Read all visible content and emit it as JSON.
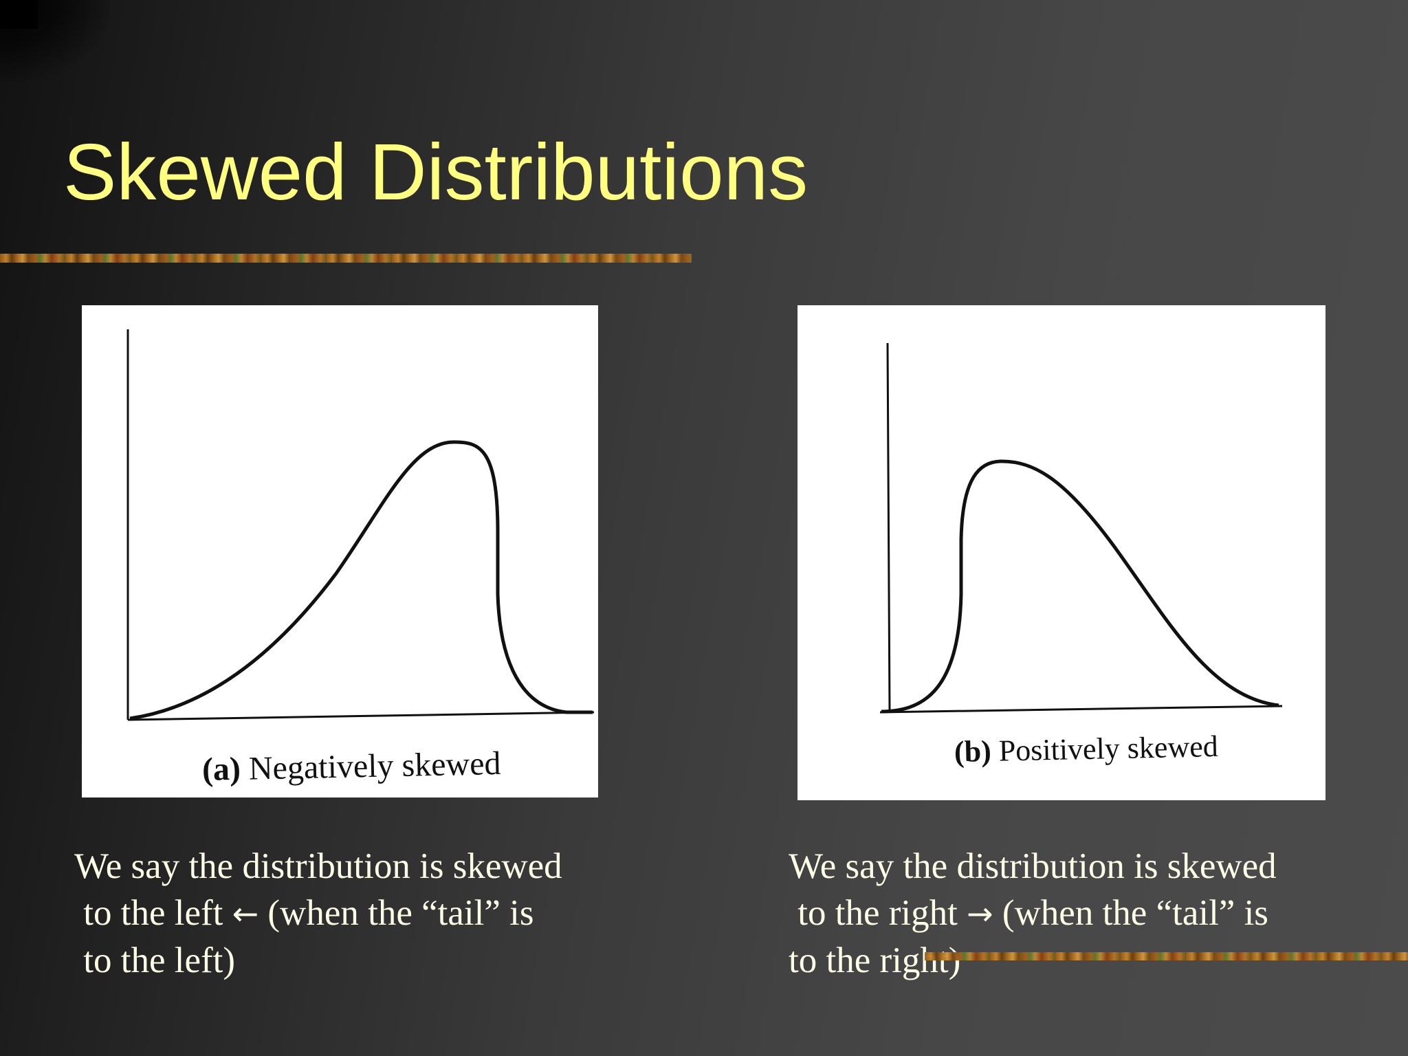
{
  "slide": {
    "title": "Skewed Distributions"
  },
  "figure_a": {
    "caption_letter": "(a)",
    "caption_text": " Negatively skewed"
  },
  "figure_b": {
    "caption_letter": "(b)",
    "caption_text": " Positively skewed"
  },
  "description_a": {
    "line1": "We say the distribution is skewed",
    "line2_pre": " to the left ",
    "line2_arrow": "←",
    "line2_post": " (when the “tail” is",
    "line3": " to the left)"
  },
  "description_b": {
    "line1": "We say the distribution is skewed",
    "line2_pre": " to the right ",
    "line2_arrow": "→",
    "line2_post": " (when the “tail” is",
    "line3": "to the right)"
  },
  "colors": {
    "title": "#ffff80",
    "body_text": "#ffffe8",
    "panel": "#ffffff",
    "curve": "#111111"
  },
  "icons": {
    "left_arrow": "arrow-left-icon",
    "right_arrow": "arrow-right-icon"
  }
}
